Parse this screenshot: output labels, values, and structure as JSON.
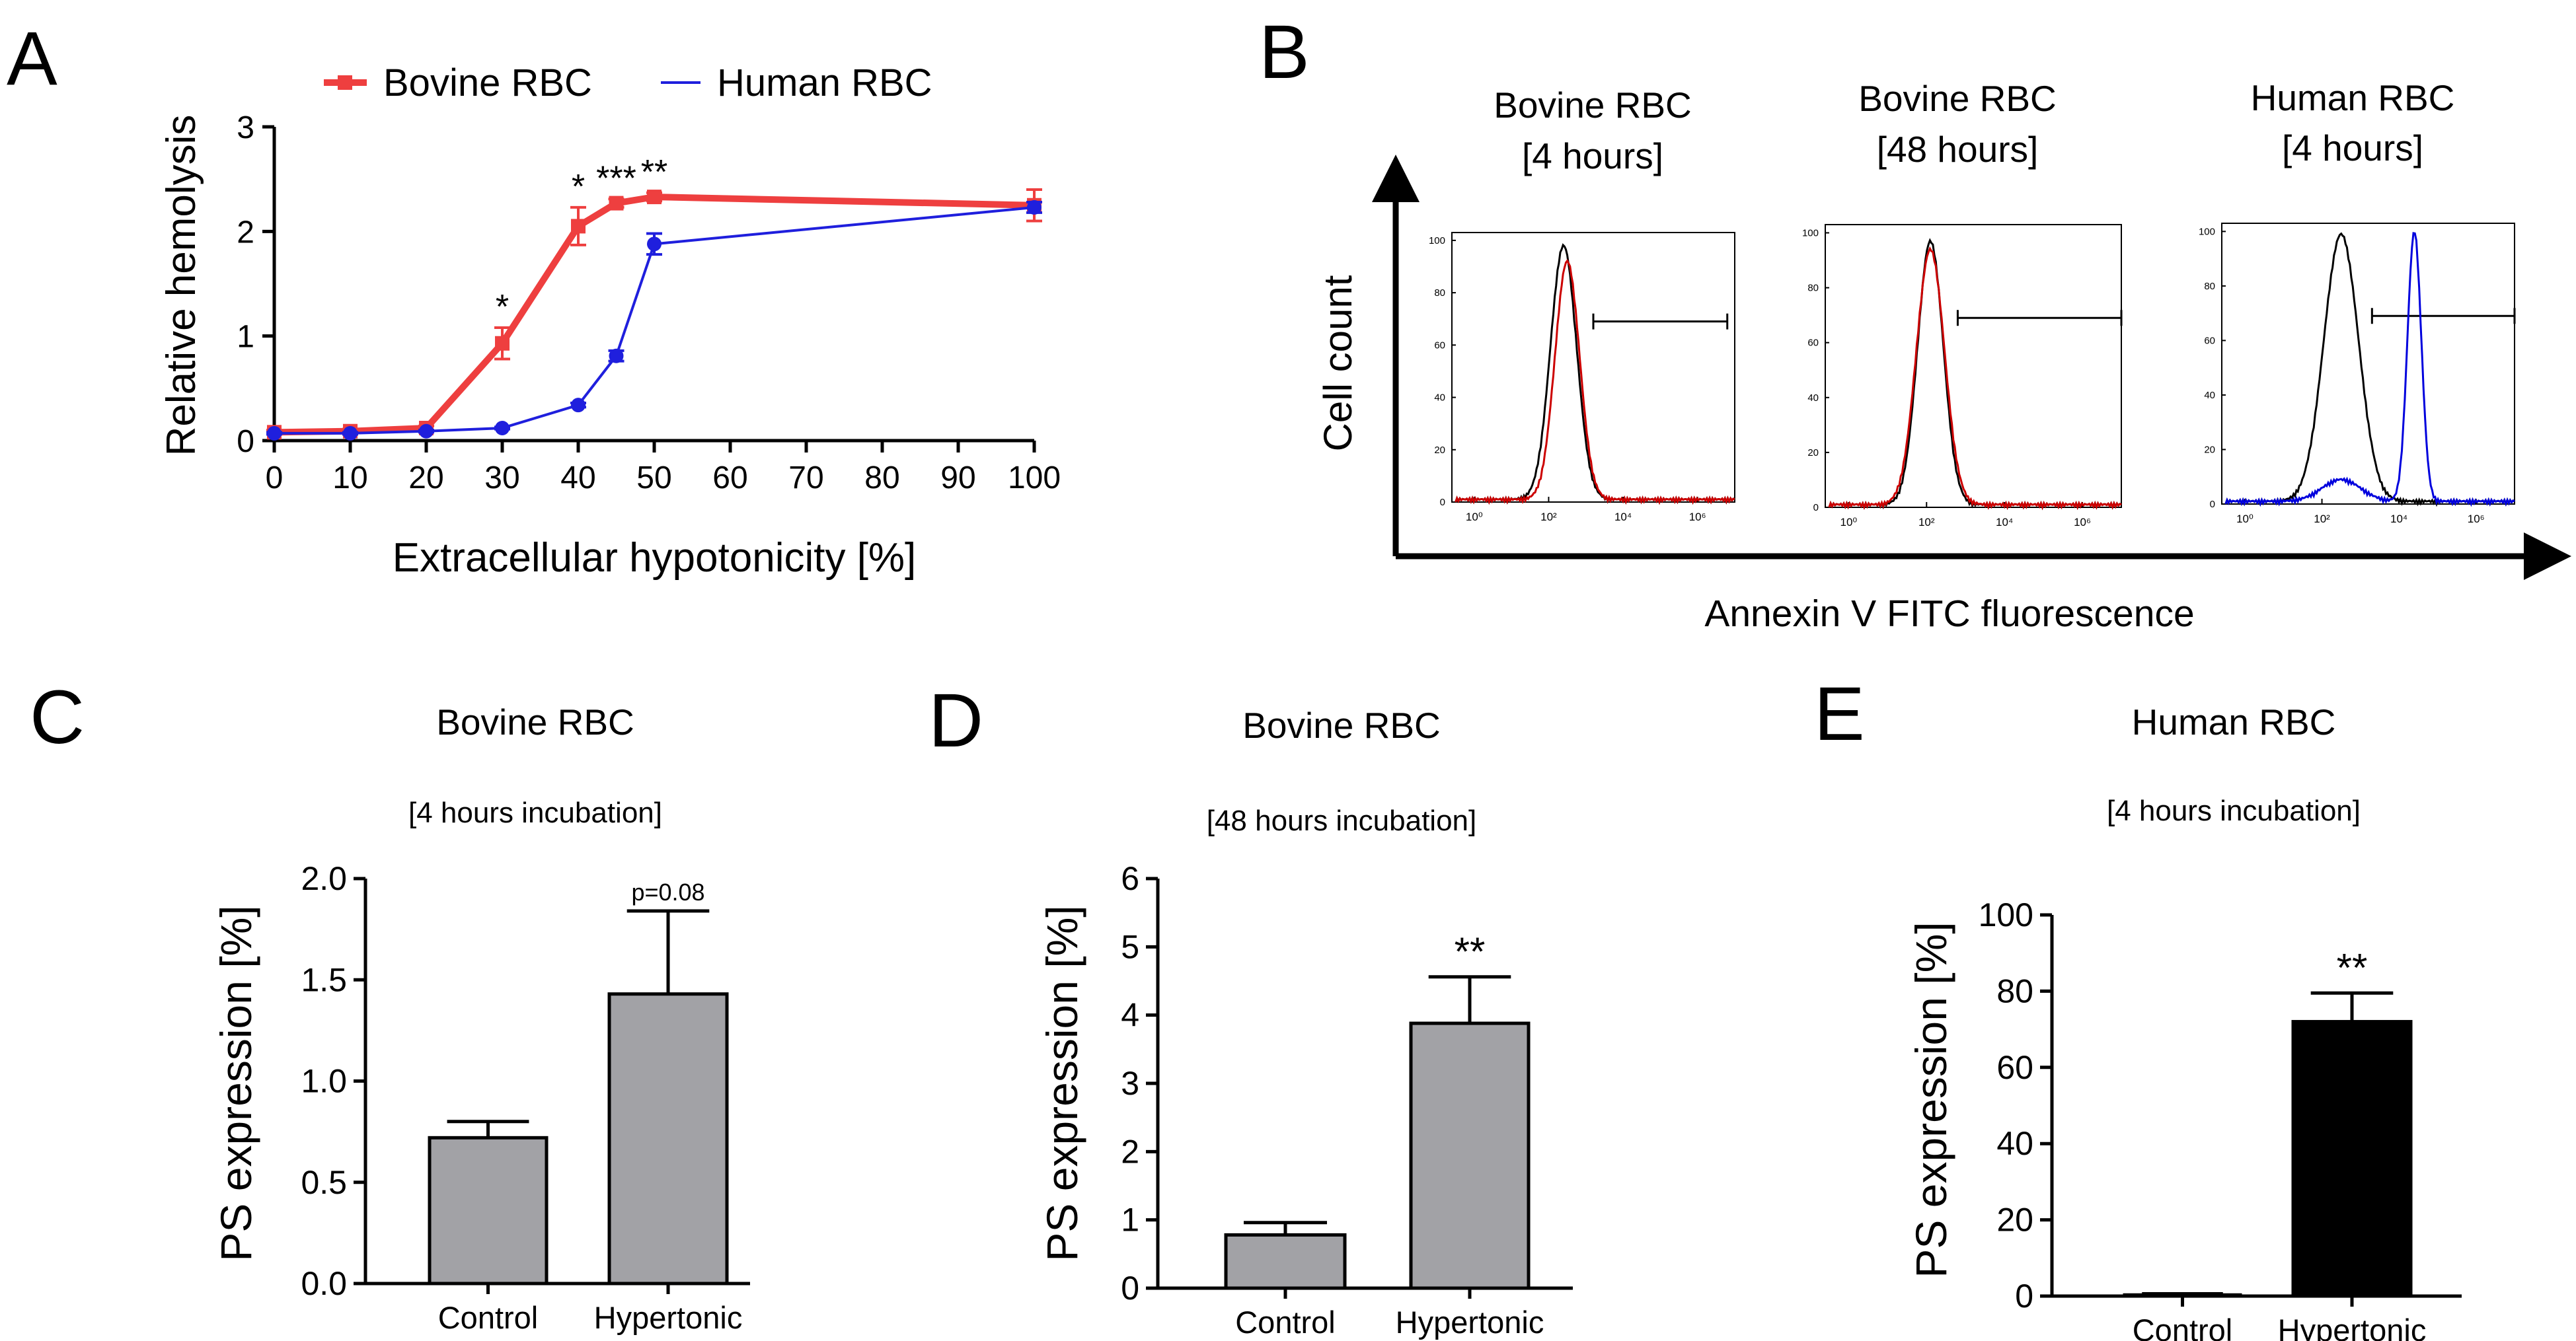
{
  "panels": {
    "A": "A",
    "B": "B",
    "C": "C",
    "D": "D",
    "E": "E"
  },
  "colors": {
    "bovine": "#ee3f3f",
    "human": "#1f1fdd",
    "bar_grey": "#a2a2a6",
    "bar_black": "#000000",
    "flow_black": "#000000",
    "flow_red": "#cc0000",
    "flow_blue": "#0000dd"
  },
  "chart_data": [
    {
      "panel": "A",
      "type": "line",
      "xlabel": "Extracellular hypotonicity [%]",
      "ylabel": "Relative hemolysis",
      "xlim": [
        0,
        100
      ],
      "ylim": [
        0,
        3
      ],
      "xticks": [
        0,
        10,
        20,
        30,
        40,
        50,
        60,
        70,
        80,
        90,
        100
      ],
      "yticks": [
        0,
        1,
        2,
        3
      ],
      "legend_position": "top",
      "series": [
        {
          "name": "Bovine RBC",
          "color": "#ee3f3f",
          "marker": "square",
          "x": [
            0,
            10,
            20,
            30,
            40,
            45,
            50,
            100
          ],
          "y": [
            0.08,
            0.09,
            0.12,
            0.93,
            2.05,
            2.27,
            2.33,
            2.25
          ],
          "err": [
            0.02,
            0.02,
            0.02,
            0.15,
            0.18,
            0.04,
            0.04,
            0.15
          ]
        },
        {
          "name": "Human RBC",
          "color": "#1f1fdd",
          "marker": "circle",
          "x": [
            0,
            10,
            20,
            30,
            40,
            45,
            50,
            100
          ],
          "y": [
            0.07,
            0.07,
            0.09,
            0.12,
            0.34,
            0.81,
            1.88,
            2.23
          ],
          "err": [
            0.01,
            0.01,
            0.01,
            0.01,
            0.02,
            0.05,
            0.1,
            0.05
          ]
        }
      ],
      "annotations": [
        {
          "x": 30,
          "label": "*"
        },
        {
          "x": 40,
          "label": "*"
        },
        {
          "x": 45,
          "label": "***"
        },
        {
          "x": 50,
          "label": "**"
        }
      ]
    },
    {
      "panel": "B",
      "type": "line",
      "xlabel": "Annexin V FITC fluorescence",
      "ylabel": "Cell count",
      "histograms": [
        {
          "title_line1": "Bovine RBC",
          "title_line2": "[4 hours]",
          "yticks": [
            "0",
            "20",
            "40",
            "60",
            "80",
            "100"
          ],
          "xticks": [
            "10⁰",
            "10²",
            "10⁴",
            "10⁶"
          ],
          "curves": [
            {
              "color": "#000000",
              "peak_log": 2.4,
              "width": 0.35,
              "height": 97
            },
            {
              "color": "#cc0000",
              "peak_log": 2.5,
              "width": 0.33,
              "height": 91
            }
          ],
          "gate": [
            3.2,
            6.8
          ]
        },
        {
          "title_line1": "Bovine RBC",
          "title_line2": "[48 hours]",
          "yticks": [
            "0",
            "20",
            "40",
            "60",
            "80",
            "100"
          ],
          "xticks": [
            "10⁰",
            "10²",
            "10⁴",
            "10⁶"
          ],
          "curves": [
            {
              "color": "#000000",
              "peak_log": 2.1,
              "width": 0.33,
              "height": 96
            },
            {
              "color": "#cc0000",
              "peak_log": 2.1,
              "width": 0.36,
              "height": 93
            }
          ],
          "gate": [
            2.8,
            7.0
          ]
        },
        {
          "title_line1": "Human RBC",
          "title_line2": "[4 hours]",
          "yticks": [
            "0",
            "20",
            "40",
            "60",
            "80",
            "100"
          ],
          "xticks": [
            "10⁰",
            "10²",
            "10⁴",
            "10⁶"
          ],
          "curves": [
            {
              "color": "#000000",
              "peak_log": 2.5,
              "width": 0.45,
              "height": 98
            },
            {
              "color": "#0000dd",
              "peak_log": 4.4,
              "width": 0.18,
              "height": 99
            }
          ],
          "gate": [
            3.3,
            7.0
          ]
        }
      ]
    },
    {
      "panel": "C",
      "type": "bar",
      "title": "Bovine RBC",
      "subtitle": "[4 hours incubation]",
      "ylabel": "PS expression [%]",
      "categories": [
        "Control",
        "Hypertonic"
      ],
      "values": [
        0.72,
        1.43
      ],
      "err": [
        0.08,
        0.41
      ],
      "ylim": [
        0,
        2.0
      ],
      "yticks": [
        "0.0",
        "0.5",
        "1.0",
        "1.5",
        "2.0"
      ],
      "annotations": [
        "",
        "p=0.08"
      ]
    },
    {
      "panel": "D",
      "type": "bar",
      "title": "Bovine RBC",
      "subtitle": "[48 hours incubation]",
      "ylabel": "PS expression [%]",
      "categories": [
        "Control",
        "Hypertonic"
      ],
      "values": [
        0.78,
        3.88
      ],
      "err": [
        0.18,
        0.68
      ],
      "ylim": [
        0,
        6
      ],
      "yticks": [
        "0",
        "1",
        "2",
        "3",
        "4",
        "5",
        "6"
      ],
      "annotations": [
        "",
        "**"
      ]
    },
    {
      "panel": "E",
      "type": "bar",
      "title": "Human RBC",
      "subtitle": "[4 hours incubation]",
      "ylabel": "PS expression [%]",
      "categories": [
        "Control",
        "Hypertonic"
      ],
      "values": [
        0.3,
        72
      ],
      "err": [
        0.3,
        7.5
      ],
      "ylim": [
        0,
        100
      ],
      "yticks": [
        "0",
        "20",
        "40",
        "60",
        "80",
        "100"
      ],
      "annotations": [
        "",
        "**"
      ]
    }
  ]
}
